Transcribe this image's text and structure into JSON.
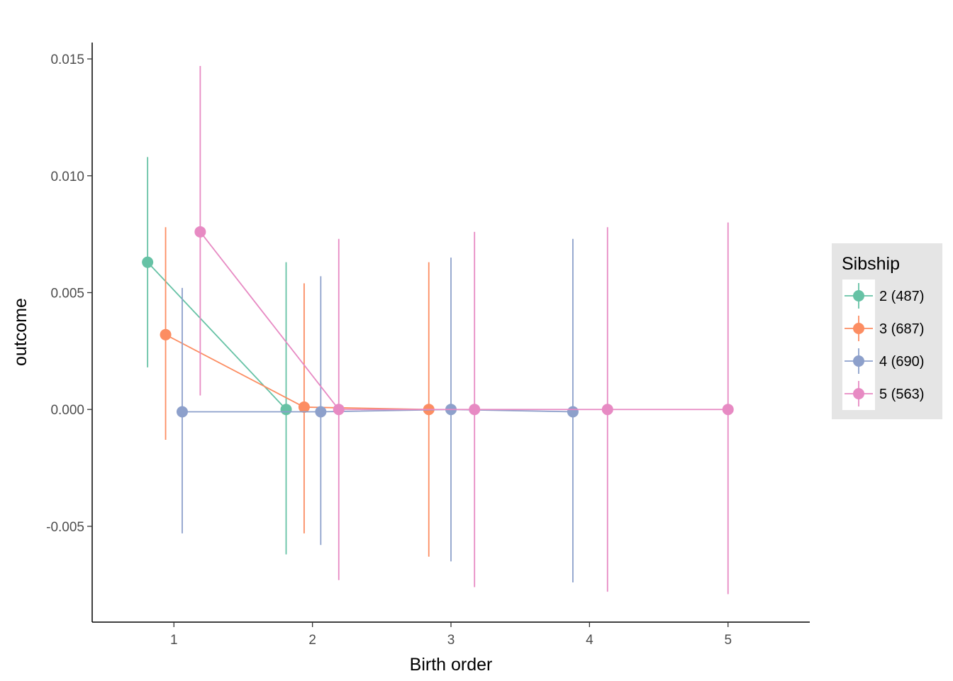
{
  "chart_data": {
    "type": "scatter",
    "subtype": "pointrange-with-lines",
    "title": "",
    "xlabel": "Birth order",
    "ylabel": "outcome",
    "x_ticks": [
      1,
      2,
      3,
      4,
      5
    ],
    "x_tick_labels": [
      "1",
      "2",
      "3",
      "4",
      "5"
    ],
    "y_ticks": [
      -0.005,
      0.0,
      0.005,
      0.01,
      0.015
    ],
    "y_tick_labels": [
      "-0.005",
      "0.000",
      "0.005",
      "0.010",
      "0.015"
    ],
    "xlim": [
      0.41,
      5.59
    ],
    "ylim": [
      -0.0091,
      0.0157
    ],
    "grid": false,
    "legend": {
      "title": "Sibship",
      "position": "right"
    },
    "series": [
      {
        "name": "2 (487)",
        "color": "#66c2a5",
        "points": [
          {
            "x": 0.81,
            "y": 0.0063,
            "ymin": 0.0018,
            "ymax": 0.0108
          },
          {
            "x": 1.81,
            "y": 0.0,
            "ymin": -0.0062,
            "ymax": 0.0063
          }
        ]
      },
      {
        "name": "3 (687)",
        "color": "#fc8d62",
        "points": [
          {
            "x": 0.94,
            "y": 0.0032,
            "ymin": -0.0013,
            "ymax": 0.0078
          },
          {
            "x": 1.94,
            "y": 0.0001,
            "ymin": -0.0053,
            "ymax": 0.0054
          },
          {
            "x": 2.84,
            "y": 0.0,
            "ymin": -0.0063,
            "ymax": 0.0063
          }
        ]
      },
      {
        "name": "4 (690)",
        "color": "#8da0cb",
        "points": [
          {
            "x": 1.06,
            "y": -0.0001,
            "ymin": -0.0053,
            "ymax": 0.0052
          },
          {
            "x": 2.06,
            "y": -0.0001,
            "ymin": -0.0058,
            "ymax": 0.0057
          },
          {
            "x": 3.0,
            "y": 0.0,
            "ymin": -0.0065,
            "ymax": 0.0065
          },
          {
            "x": 3.88,
            "y": -0.0001,
            "ymin": -0.0074,
            "ymax": 0.0073
          }
        ]
      },
      {
        "name": "5 (563)",
        "color": "#e78ac3",
        "points": [
          {
            "x": 1.19,
            "y": 0.0076,
            "ymin": 0.0006,
            "ymax": 0.0147
          },
          {
            "x": 2.19,
            "y": 0.0,
            "ymin": -0.0073,
            "ymax": 0.0073
          },
          {
            "x": 3.17,
            "y": 0.0,
            "ymin": -0.0076,
            "ymax": 0.0076
          },
          {
            "x": 4.13,
            "y": 0.0,
            "ymin": -0.0078,
            "ymax": 0.0078
          },
          {
            "x": 5.0,
            "y": 0.0,
            "ymin": -0.0079,
            "ymax": 0.008
          }
        ]
      }
    ]
  }
}
